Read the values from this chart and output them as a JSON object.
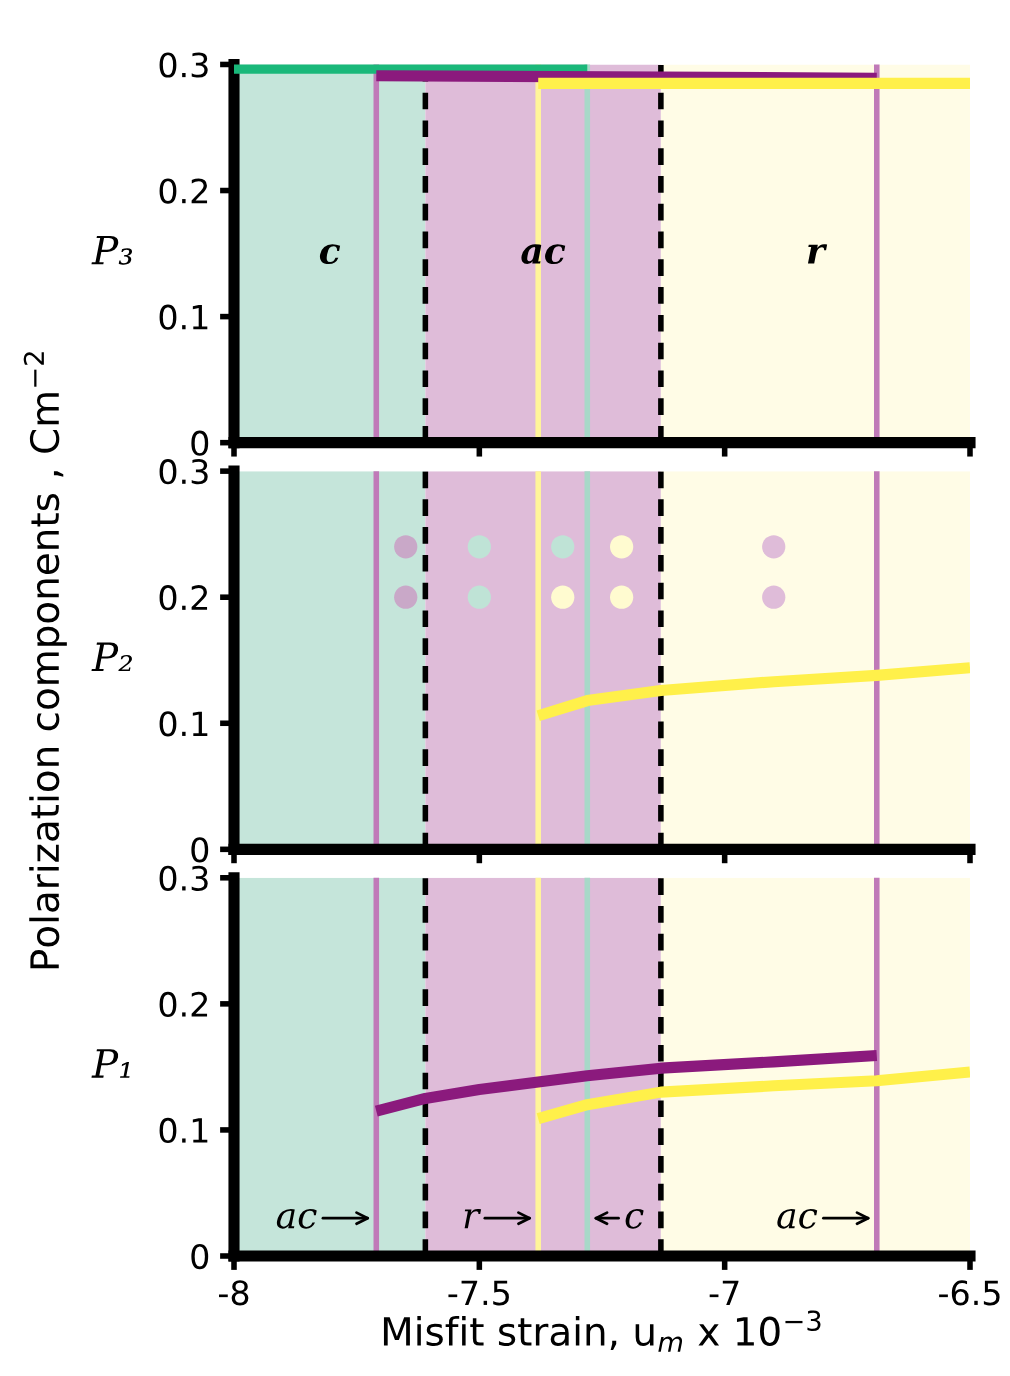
{
  "chart_data": [
    {
      "type": "line",
      "ylabel": "P₃",
      "xlim": [
        -8,
        -6.5
      ],
      "xticks": [
        -8,
        -7.5,
        -7,
        -6.5
      ],
      "ylim": [
        0,
        0.3
      ],
      "yticks": [
        0,
        0.1,
        0.2,
        0.3
      ],
      "tick_labels": "y",
      "grid": false,
      "legend": false,
      "series": [
        {
          "color": "#1ab87a",
          "x": [
            -8,
            -7.28
          ],
          "values": [
            0.297,
            0.297
          ]
        },
        {
          "color": "#8b1a7d",
          "x": [
            -7.71,
            -7.13,
            -6.69
          ],
          "values": [
            0.291,
            0.29,
            0.289
          ]
        },
        {
          "color": "#fff04a",
          "x": [
            -7.38,
            -6.5
          ],
          "values": [
            0.285,
            0.285
          ]
        }
      ],
      "bands": [
        {
          "axis": "x",
          "from": -8,
          "to": -7.61,
          "color": "#c5e5da",
          "label": "c"
        },
        {
          "axis": "x",
          "from": -7.61,
          "to": -7.13,
          "color": "#dfbcd9",
          "label": "ac"
        },
        {
          "axis": "x",
          "from": -7.13,
          "to": -6.5,
          "color": "#fffce6",
          "label": "r"
        }
      ],
      "ref_lines": [
        {
          "axis": "x",
          "value": -7.71,
          "color": "#c07ab8",
          "line_style": "solid"
        },
        {
          "axis": "x",
          "value": -7.61,
          "color": "#000000",
          "line_style": "dashed"
        },
        {
          "axis": "x",
          "value": -7.38,
          "color": "#fff59a",
          "line_style": "solid"
        },
        {
          "axis": "x",
          "value": -7.28,
          "color": "#a8d8c8",
          "line_style": "solid"
        },
        {
          "axis": "x",
          "value": -7.13,
          "color": "#000000",
          "line_style": "dashed"
        },
        {
          "axis": "x",
          "value": -6.69,
          "color": "#c07ab8",
          "line_style": "solid"
        }
      ]
    },
    {
      "type": "line",
      "ylabel": "P₂",
      "annotations": [
        "Polarization components , Cm$^{−2}$"
      ],
      "xlim": [
        -8,
        -6.5
      ],
      "xticks": [
        -8,
        -7.5,
        -7,
        -6.5
      ],
      "ylim": [
        0,
        0.3
      ],
      "yticks": [
        0,
        0.1,
        0.2,
        0.3
      ],
      "tick_labels": "y",
      "grid": false,
      "legend": false,
      "series": [
        {
          "color": "#fff04a",
          "x": [
            -7.38,
            -7.28,
            -7.13,
            -6.9,
            -6.69,
            -6.5
          ],
          "values": [
            0.106,
            0.118,
            0.126,
            0.133,
            0.138,
            0.144
          ]
        }
      ],
      "bands": [
        {
          "axis": "x",
          "from": -8,
          "to": -7.61,
          "color": "#c5e5da"
        },
        {
          "axis": "x",
          "from": -7.61,
          "to": -7.13,
          "color": "#dfbcd9"
        },
        {
          "axis": "x",
          "from": -7.13,
          "to": -6.5,
          "color": "#fffce6"
        }
      ],
      "ref_lines": [
        {
          "axis": "x",
          "value": -7.71,
          "color": "#c07ab8",
          "line_style": "solid"
        },
        {
          "axis": "x",
          "value": -7.61,
          "color": "#000000",
          "line_style": "dashed"
        },
        {
          "axis": "x",
          "value": -7.38,
          "color": "#fff59a",
          "line_style": "solid"
        },
        {
          "axis": "x",
          "value": -7.28,
          "color": "#a8d8c8",
          "line_style": "solid"
        },
        {
          "axis": "x",
          "value": -7.13,
          "color": "#000000",
          "line_style": "dashed"
        },
        {
          "axis": "x",
          "value": -6.69,
          "color": "#c07ab8",
          "line_style": "solid"
        }
      ]
    },
    {
      "type": "line",
      "ylabel": "P₁",
      "xlabel": "Misfit strain, u$_{m}$ x 10$^{−3}$",
      "xlim": [
        -8,
        -6.5
      ],
      "xticks": [
        -8,
        -7.5,
        -7,
        -6.5
      ],
      "ylim": [
        0,
        0.3
      ],
      "yticks": [
        0,
        0.1,
        0.2,
        0.3
      ],
      "grid": false,
      "legend": false,
      "annotations": [
        {
          "text": "ac",
          "x": -7.71,
          "y": 0.03
        },
        {
          "text": "r",
          "x": -7.38,
          "y": 0.03
        },
        {
          "text": "c",
          "x": -7.28,
          "y": 0.03
        },
        {
          "text": "ac",
          "x": -6.69,
          "y": 0.03
        }
      ],
      "series": [
        {
          "color": "#8b1a7d",
          "x": [
            -7.71,
            -7.61,
            -7.5,
            -7.38,
            -7.28,
            -7.13,
            -6.9,
            -6.69
          ],
          "values": [
            0.115,
            0.125,
            0.132,
            0.138,
            0.143,
            0.149,
            0.154,
            0.159
          ]
        },
        {
          "color": "#fff04a",
          "x": [
            -7.38,
            -7.28,
            -7.13,
            -6.9,
            -6.69,
            -6.5
          ],
          "values": [
            0.109,
            0.12,
            0.13,
            0.135,
            0.139,
            0.146
          ]
        }
      ],
      "bands": [
        {
          "axis": "x",
          "from": -8,
          "to": -7.61,
          "color": "#c5e5da"
        },
        {
          "axis": "x",
          "from": -7.61,
          "to": -7.13,
          "color": "#dfbcd9"
        },
        {
          "axis": "x",
          "from": -7.13,
          "to": -6.5,
          "color": "#fffce6"
        }
      ],
      "ref_lines": [
        {
          "axis": "x",
          "value": -7.71,
          "color": "#c07ab8",
          "line_style": "solid"
        },
        {
          "axis": "x",
          "value": -7.61,
          "color": "#000000",
          "line_style": "dashed"
        },
        {
          "axis": "x",
          "value": -7.38,
          "color": "#fff59a",
          "line_style": "solid"
        },
        {
          "axis": "x",
          "value": -7.28,
          "color": "#a8d8c8",
          "line_style": "solid"
        },
        {
          "axis": "x",
          "value": -7.13,
          "color": "#000000",
          "line_style": "dashed"
        },
        {
          "axis": "x",
          "value": -6.69,
          "color": "#c07ab8",
          "line_style": "solid"
        }
      ]
    }
  ]
}
